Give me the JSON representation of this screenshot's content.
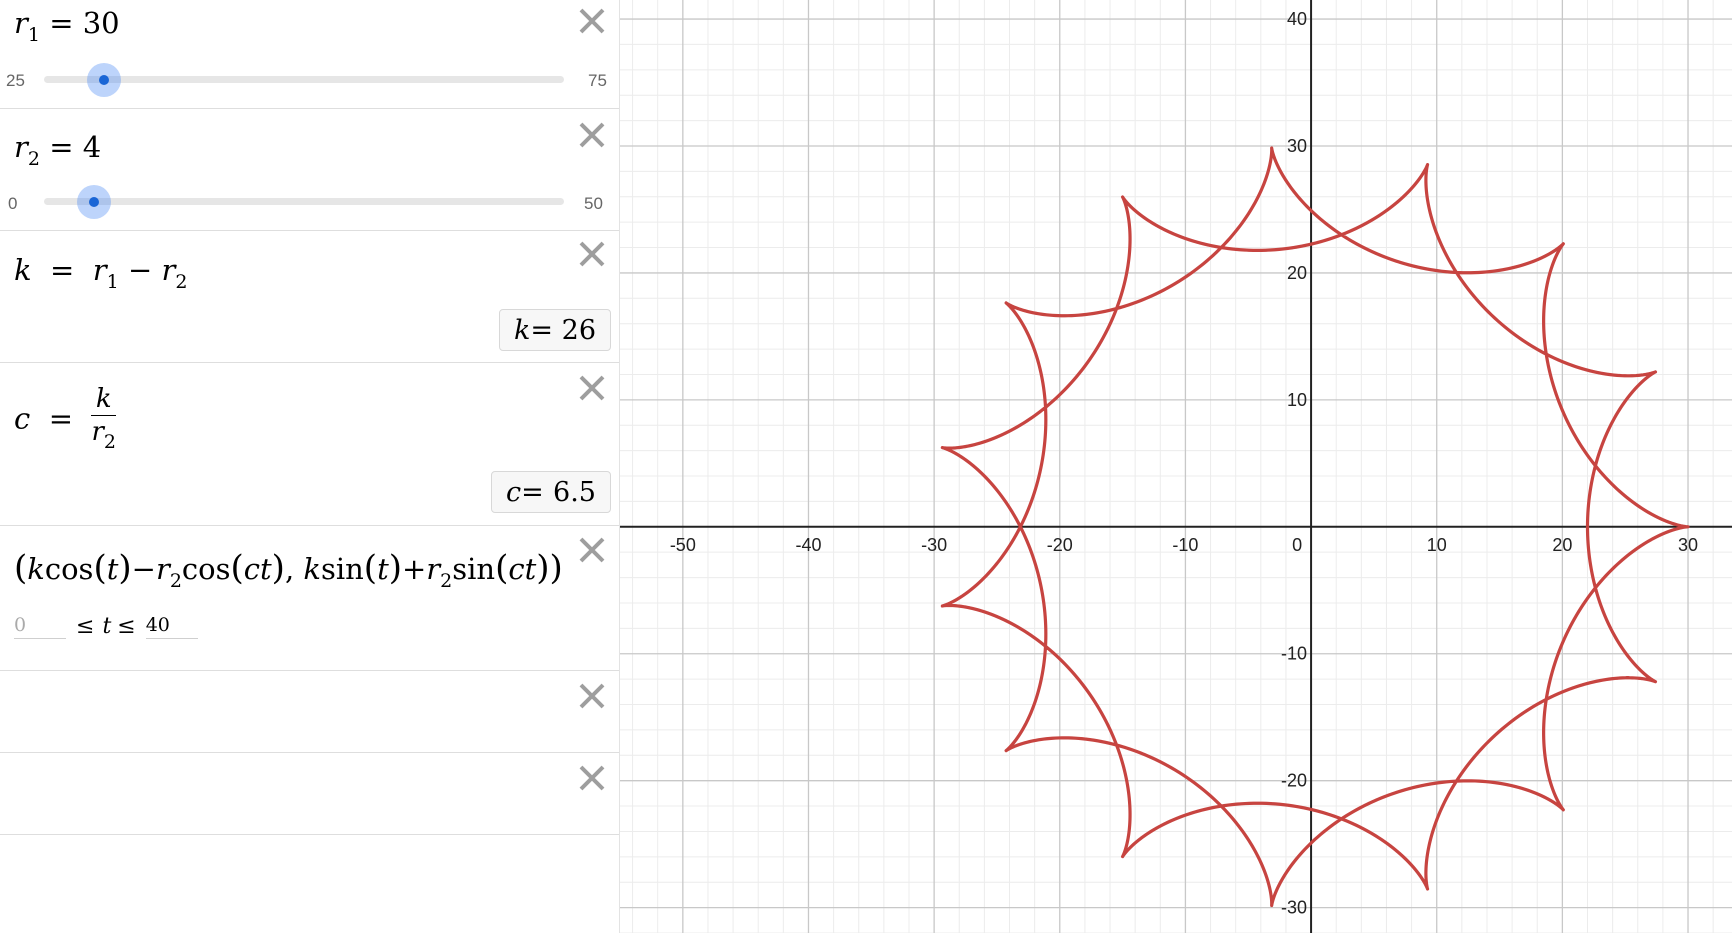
{
  "expressions": [
    {
      "id": "r1",
      "lhs": "r",
      "sub": "1",
      "op": "=",
      "value": "30",
      "slider": {
        "min": "25",
        "max": "75",
        "value": 30,
        "min_num": 25,
        "max_num": 75
      }
    },
    {
      "id": "r2",
      "lhs": "r",
      "sub": "2",
      "op": "=",
      "value": "4",
      "slider": {
        "min": "0",
        "max": "50",
        "value": 4,
        "min_num": 0,
        "max_num": 50
      }
    },
    {
      "id": "k",
      "lhs": "k",
      "op": "=",
      "rhs_a": "r",
      "rhs_a_sub": "1",
      "minus": "−",
      "rhs_b": "r",
      "rhs_b_sub": "2",
      "result_lhs": "k",
      "result_value": "26"
    },
    {
      "id": "c",
      "lhs": "c",
      "op": "=",
      "num": "k",
      "den": "r",
      "den_sub": "2",
      "result_lhs": "c",
      "result_value": "6.5"
    },
    {
      "id": "curve",
      "parts": [
        "(",
        "k",
        "cos",
        "(",
        "t",
        ")",
        "−",
        "r",
        "2",
        "cos",
        "(",
        "ct",
        ")",
        ",",
        "k",
        "sin",
        "(",
        "t",
        ")",
        "+",
        "r",
        "2",
        "sin",
        "(",
        "ct",
        ")",
        ")"
      ],
      "t_min": "0",
      "t_max": "40",
      "le": "≤",
      "t": "t"
    }
  ],
  "graph": {
    "x_range": [
      -55,
      33.5
    ],
    "y_range": [
      -32,
      41.5
    ],
    "x_ticks": [
      "-50",
      "-40",
      "-30",
      "-20",
      "-10",
      "0",
      "10",
      "20",
      "30"
    ],
    "y_ticks": [
      "40",
      "30",
      "20",
      "10",
      "-10",
      "-20",
      "-30"
    ],
    "curve_color": "#c74440",
    "grid_major_color": "#c8c8c8",
    "grid_minor_color": "#ececec",
    "params": {
      "r1": 30,
      "r2": 4,
      "t_min": 0,
      "t_max": 40
    }
  },
  "icons": {
    "delete": "close-icon"
  }
}
